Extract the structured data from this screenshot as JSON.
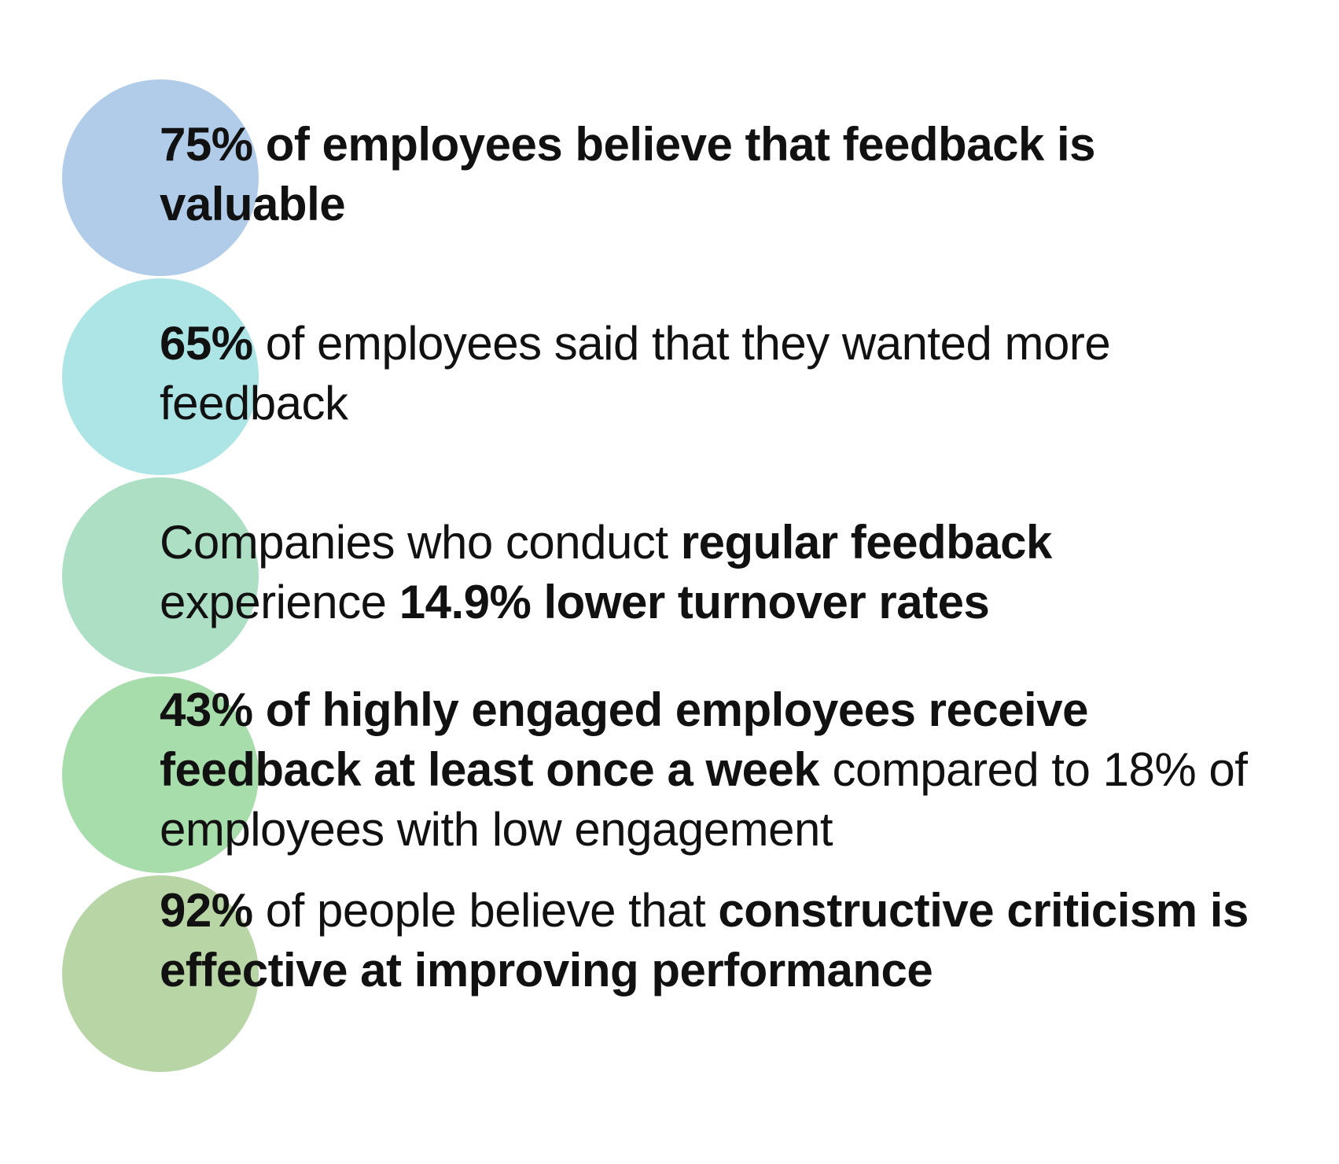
{
  "stats": [
    {
      "color": "#b1cce9",
      "segments": [
        {
          "text": "75% of employees believe that feedback is valuable",
          "bold": true
        }
      ]
    },
    {
      "color": "#ade4e5",
      "segments": [
        {
          "text": "65%",
          "bold": true
        },
        {
          "text": " of employees said that they wanted more feedback",
          "bold": false
        }
      ]
    },
    {
      "color": "#acdfc4",
      "segments": [
        {
          "text": "Companies who conduct ",
          "bold": false
        },
        {
          "text": "regular feedback",
          "bold": true
        },
        {
          "text": " experience ",
          "bold": false
        },
        {
          "text": "14.9% lower turnover rates",
          "bold": true
        }
      ]
    },
    {
      "color": "#a7dcab",
      "segments": [
        {
          "text": "43% of highly engaged employees receive feedback at least once a week",
          "bold": true
        },
        {
          "text": " compared to 18% of employees with low engagement",
          "bold": false
        }
      ]
    },
    {
      "color": "#b8d5a6",
      "segments": [
        {
          "text": "92%",
          "bold": true
        },
        {
          "text": " of people believe that ",
          "bold": false
        },
        {
          "text": "constructive criticism is effective at improving performance",
          "bold": true
        }
      ]
    }
  ]
}
